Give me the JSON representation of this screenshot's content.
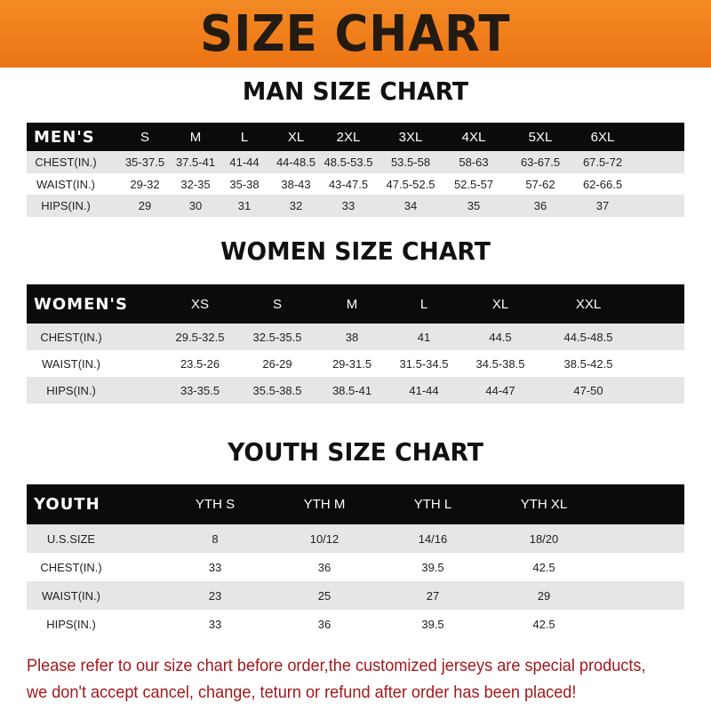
{
  "banner_title": "SIZE CHART",
  "colors": {
    "banner": "#ef7a1a",
    "header_row": "#0b0b0b",
    "shaded_row": "#e6e6e6",
    "note": "#a3181c"
  },
  "men": {
    "title": "MAN SIZE CHART",
    "header": "MEN'S",
    "sizes": [
      "S",
      "M",
      "L",
      "XL",
      "2XL",
      "3XL",
      "4XL",
      "5XL",
      "6XL"
    ],
    "rows": [
      {
        "label": "CHEST(IN.)",
        "values": [
          "35-37.5",
          "37.5-41",
          "41-44",
          "44-48.5",
          "48.5-53.5",
          "53.5-58",
          "58-63",
          "63-67.5",
          "67.5-72"
        ]
      },
      {
        "label": "WAIST(IN.)",
        "values": [
          "29-32",
          "32-35",
          "35-38",
          "38-43",
          "43-47.5",
          "47.5-52.5",
          "52.5-57",
          "57-62",
          "62-66.5"
        ]
      },
      {
        "label": "HIPS(IN.)",
        "values": [
          "29",
          "30",
          "31",
          "32",
          "33",
          "34",
          "35",
          "36",
          "37"
        ]
      }
    ]
  },
  "women": {
    "title": "WOMEN SIZE CHART",
    "header": "WOMEN'S",
    "sizes": [
      "XS",
      "S",
      "M",
      "L",
      "XL",
      "XXL"
    ],
    "rows": [
      {
        "label": "CHEST(IN.)",
        "values": [
          "29.5-32.5",
          "32.5-35.5",
          "38",
          "41",
          "44.5",
          "44.5-48.5"
        ]
      },
      {
        "label": "WAIST(IN.)",
        "values": [
          "23.5-26",
          "26-29",
          "29-31.5",
          "31.5-34.5",
          "34.5-38.5",
          "38.5-42.5"
        ]
      },
      {
        "label": "HIPS(IN.)",
        "values": [
          "33-35.5",
          "35.5-38.5",
          "38.5-41",
          "41-44",
          "44-47",
          "47-50"
        ]
      }
    ]
  },
  "youth": {
    "title": "YOUTH SIZE CHART",
    "header": "YOUTH",
    "sizes": [
      "YTH S",
      "YTH M",
      "YTH L",
      "YTH XL"
    ],
    "rows": [
      {
        "label": "U.S.SIZE",
        "values": [
          "8",
          "10/12",
          "14/16",
          "18/20"
        ]
      },
      {
        "label": "CHEST(IN.)",
        "values": [
          "33",
          "36",
          "39.5",
          "42.5"
        ]
      },
      {
        "label": "WAIST(IN.)",
        "values": [
          "23",
          "25",
          "27",
          "29"
        ]
      },
      {
        "label": "HIPS(IN.)",
        "values": [
          "33",
          "36",
          "39.5",
          "42.5"
        ]
      }
    ]
  },
  "note_lines": [
    "Please refer to our size chart before order,the customized jerseys are special products,",
    "we don't accept cancel, change, teturn or refund after order has been placed!"
  ]
}
